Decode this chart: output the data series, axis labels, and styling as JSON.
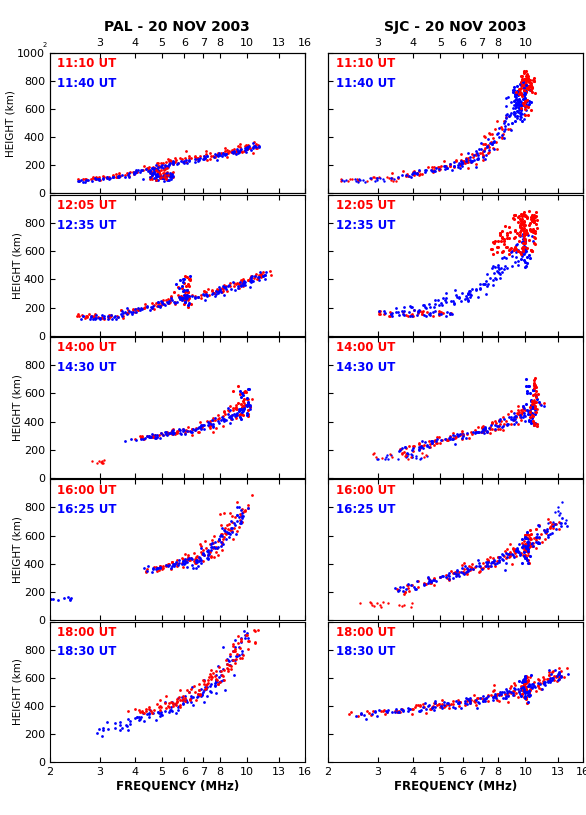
{
  "title_left": "PAL - 20 NOV 2003",
  "title_right": "SJC - 20 NOV 2003",
  "xlabel": "FREQUENCY (MHz)",
  "ylabel": "HEIGHT (km)",
  "color_red": "#FF0000",
  "color_blue": "#0000FF",
  "rows": [
    {
      "time1": "11:10 UT",
      "time2": "11:40 UT"
    },
    {
      "time1": "12:05 UT",
      "time2": "12:35 UT"
    },
    {
      "time1": "14:00 UT",
      "time2": "14:30 UT"
    },
    {
      "time1": "16:00 UT",
      "time2": "16:25 UT"
    },
    {
      "time1": "18:00 UT",
      "time2": "18:30 UT"
    }
  ],
  "freq_ticks_all": [
    2,
    3,
    4,
    5,
    6,
    7,
    8,
    10,
    13,
    16
  ],
  "freq_labels_all": [
    "2",
    "3",
    "4",
    "5",
    "6",
    "7",
    "8",
    "10",
    "13",
    "16"
  ],
  "freq_ticks_top_left": [
    3,
    4,
    5,
    6,
    7,
    8,
    10,
    13,
    16
  ],
  "freq_labels_top_left": [
    "3",
    "4",
    "5",
    "6",
    "7",
    "8",
    "10",
    "13",
    "16"
  ],
  "freq_ticks_top_right": [
    3,
    4,
    5,
    6,
    7,
    8,
    10
  ],
  "freq_labels_top_right": [
    "3",
    "4",
    "5",
    "6",
    "7",
    "8",
    "10"
  ],
  "inner_ticks": [
    2,
    3,
    4,
    5,
    6,
    7,
    8,
    10,
    13,
    16
  ],
  "inner_labels": [
    "",
    "",
    "",
    "5",
    "",
    "",
    "",
    "10",
    "",
    ""
  ]
}
